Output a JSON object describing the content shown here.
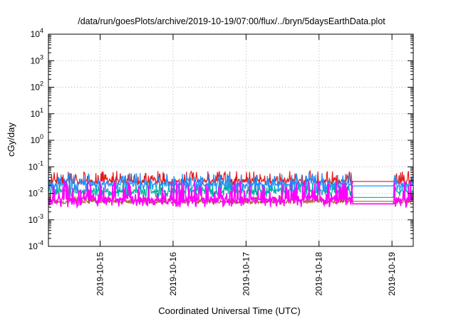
{
  "chart_data": {
    "type": "line",
    "title": "/data/run/goesPlots/archive/2019-10-19/07:00/flux/../bryn/5daysEarthData.plot",
    "xlabel": "Coordinated Universal Time (UTC)",
    "ylabel": "cGy/day",
    "yscale": "log",
    "ylim": [
      0.0001,
      10000
    ],
    "xlim": [
      "2019-10-14 07:00",
      "2019-10-19 07:00"
    ],
    "grid": true,
    "legend": "none",
    "y_ticks": [
      {
        "value": 0.0001,
        "base": "10",
        "exp": "-4"
      },
      {
        "value": 0.001,
        "base": "10",
        "exp": "-3"
      },
      {
        "value": 0.01,
        "base": "10",
        "exp": "-2"
      },
      {
        "value": 0.1,
        "base": "10",
        "exp": "-1"
      },
      {
        "value": 1,
        "base": "10",
        "exp": "0"
      },
      {
        "value": 10,
        "base": "10",
        "exp": "1"
      },
      {
        "value": 100,
        "base": "10",
        "exp": "2"
      },
      {
        "value": 1000,
        "base": "10",
        "exp": "3"
      },
      {
        "value": 10000,
        "base": "10",
        "exp": "4"
      }
    ],
    "x_ticks": [
      "2019-10-15",
      "2019-10-16",
      "2019-10-17",
      "2019-10-18",
      "2019-10-19"
    ],
    "data_gap": {
      "start": "2019-10-18 11:00",
      "end": "2019-10-19 00:30"
    },
    "series": [
      {
        "color": "#e41a1c",
        "typical": 0.03,
        "low": 0.02,
        "high": 0.07,
        "gap_level": 0.028
      },
      {
        "color": "#00b0a0",
        "typical": 0.012,
        "low": 0.007,
        "high": 0.03,
        "gap_level": 0.007
      },
      {
        "color": "#1e90ff",
        "typical": 0.022,
        "low": 0.012,
        "high": 0.06,
        "gap_level": 0.019
      },
      {
        "color": "#ff00ff",
        "typical": 0.006,
        "low": 0.003,
        "high": 0.03,
        "gap_level": 0.004
      },
      {
        "color": "#aa6633",
        "typical": 0.005,
        "low": 0.004,
        "high": 0.008,
        "gap_level": 0.005
      }
    ]
  }
}
